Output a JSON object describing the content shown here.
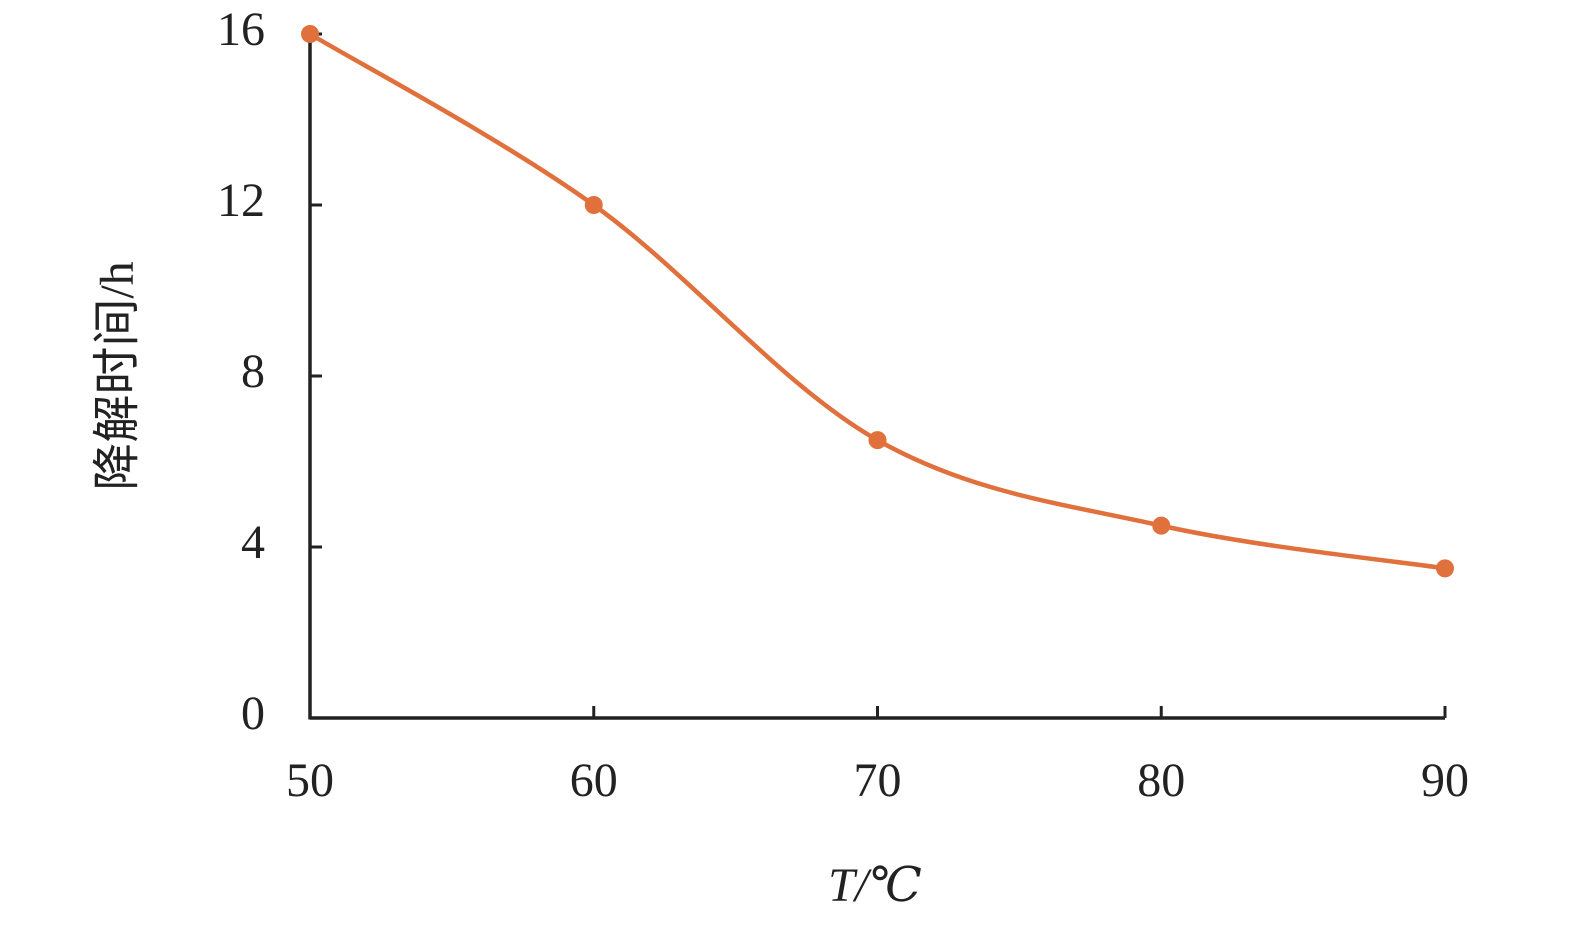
{
  "chart_data": {
    "type": "line",
    "x_label": "T/℃",
    "y_label": "降解时间/h",
    "x": [
      50,
      60,
      70,
      80,
      90
    ],
    "series": [
      {
        "color": "#e0703c",
        "values": [
          16,
          12,
          6.5,
          4.5,
          3.5
        ]
      }
    ],
    "xlim": [
      50,
      90
    ],
    "xticks": [
      50,
      60,
      70,
      80,
      90
    ],
    "ylim": [
      0,
      16
    ],
    "yticks": [
      0,
      4,
      8,
      12,
      16
    ],
    "smooth": true,
    "grid": false
  }
}
